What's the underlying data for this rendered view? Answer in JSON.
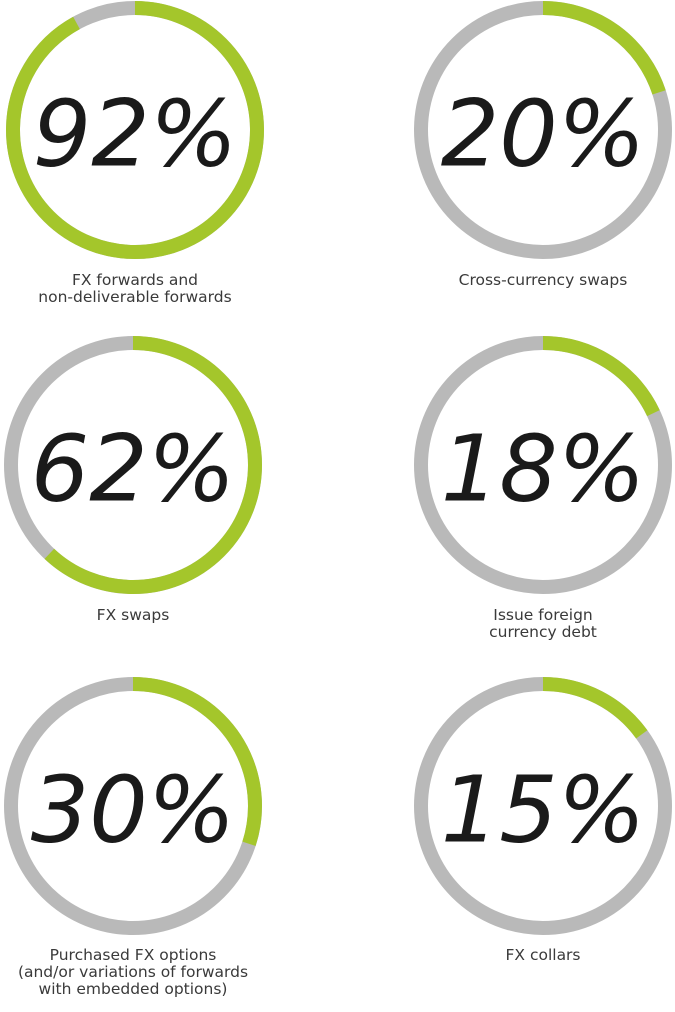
{
  "chart_data": [
    {
      "type": "donut",
      "caption": [
        "FX forwards and",
        "non-deliverable forwards"
      ],
      "values": [
        92
      ],
      "value_labels": [
        "92%"
      ],
      "ylim": [
        0,
        100
      ],
      "color": "#a4c62b",
      "track_color": "#b9b9b9"
    },
    {
      "type": "donut",
      "caption": [
        "Cross-currency swaps"
      ],
      "values": [
        20
      ],
      "value_labels": [
        "20%"
      ],
      "ylim": [
        0,
        100
      ],
      "color": "#a4c62b",
      "track_color": "#b9b9b9"
    },
    {
      "type": "donut",
      "caption": [
        "FX swaps"
      ],
      "values": [
        62
      ],
      "value_labels": [
        "62%"
      ],
      "ylim": [
        0,
        100
      ],
      "color": "#a4c62b",
      "track_color": "#b9b9b9"
    },
    {
      "type": "donut",
      "caption": [
        "Issue foreign",
        "currency debt"
      ],
      "values": [
        18
      ],
      "value_labels": [
        "18%"
      ],
      "ylim": [
        0,
        100
      ],
      "color": "#a4c62b",
      "track_color": "#b9b9b9"
    },
    {
      "type": "donut",
      "caption": [
        "Purchased FX options",
        "(and/or variations of forwards",
        "with embedded options)"
      ],
      "values": [
        30
      ],
      "value_labels": [
        "30%"
      ],
      "ylim": [
        0,
        100
      ],
      "color": "#a4c62b",
      "track_color": "#b9b9b9"
    },
    {
      "type": "donut",
      "caption": [
        "FX collars"
      ],
      "values": [
        15
      ],
      "value_labels": [
        "15%"
      ],
      "ylim": [
        0,
        100
      ],
      "color": "#a4c62b",
      "track_color": "#b9b9b9"
    }
  ]
}
